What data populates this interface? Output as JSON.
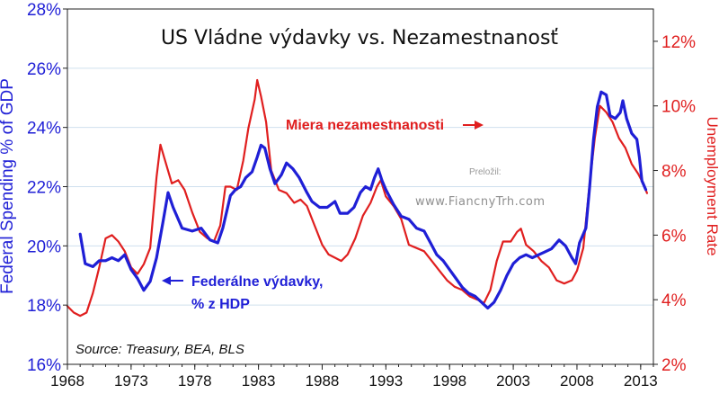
{
  "chart_data": {
    "type": "line",
    "title": "US Vládne výdavky vs. Nezamestnanosť",
    "ylabel_left": "Federal Spending % of GDP",
    "ylabel_right": "Unemployment Rate",
    "xlim": [
      1968,
      2014
    ],
    "ylim_left": [
      16,
      28
    ],
    "ylim_right": [
      2,
      13
    ],
    "grid": true,
    "x_ticks": [
      "1968",
      "1973",
      "1978",
      "1983",
      "1988",
      "1993",
      "1998",
      "2003",
      "2008",
      "2013"
    ],
    "y_ticks_left": [
      "16%",
      "18%",
      "20%",
      "22%",
      "24%",
      "26%",
      "28%"
    ],
    "y_ticks_right": [
      "2%",
      "4%",
      "6%",
      "8%",
      "10%",
      "12%"
    ],
    "series": [
      {
        "name": "Federálne výdavky, % z HDP",
        "axis": "left",
        "color": "#1f1fd6",
        "points": [
          [
            1969.0,
            20.4
          ],
          [
            1969.4,
            19.4
          ],
          [
            1970.0,
            19.3
          ],
          [
            1970.5,
            19.5
          ],
          [
            1971.0,
            19.5
          ],
          [
            1971.5,
            19.6
          ],
          [
            1972.0,
            19.5
          ],
          [
            1972.5,
            19.7
          ],
          [
            1973.0,
            19.2
          ],
          [
            1973.5,
            18.9
          ],
          [
            1974.0,
            18.5
          ],
          [
            1974.5,
            18.8
          ],
          [
            1975.0,
            19.6
          ],
          [
            1975.5,
            20.8
          ],
          [
            1975.9,
            21.8
          ],
          [
            1976.3,
            21.3
          ],
          [
            1977.0,
            20.6
          ],
          [
            1977.8,
            20.5
          ],
          [
            1978.5,
            20.6
          ],
          [
            1979.2,
            20.2
          ],
          [
            1979.8,
            20.1
          ],
          [
            1980.2,
            20.6
          ],
          [
            1980.8,
            21.7
          ],
          [
            1981.2,
            21.9
          ],
          [
            1981.6,
            22.0
          ],
          [
            1982.0,
            22.3
          ],
          [
            1982.5,
            22.5
          ],
          [
            1982.9,
            23.0
          ],
          [
            1983.2,
            23.4
          ],
          [
            1983.5,
            23.3
          ],
          [
            1983.9,
            22.6
          ],
          [
            1984.3,
            22.1
          ],
          [
            1984.8,
            22.4
          ],
          [
            1985.2,
            22.8
          ],
          [
            1985.7,
            22.6
          ],
          [
            1986.2,
            22.3
          ],
          [
            1986.8,
            21.8
          ],
          [
            1987.2,
            21.5
          ],
          [
            1987.8,
            21.3
          ],
          [
            1988.4,
            21.3
          ],
          [
            1989.0,
            21.5
          ],
          [
            1989.4,
            21.1
          ],
          [
            1990.0,
            21.1
          ],
          [
            1990.5,
            21.3
          ],
          [
            1991.0,
            21.8
          ],
          [
            1991.4,
            22.0
          ],
          [
            1991.8,
            21.9
          ],
          [
            1992.1,
            22.3
          ],
          [
            1992.4,
            22.6
          ],
          [
            1992.7,
            22.2
          ],
          [
            1993.0,
            21.9
          ],
          [
            1993.6,
            21.4
          ],
          [
            1994.2,
            21.0
          ],
          [
            1994.8,
            20.9
          ],
          [
            1995.4,
            20.6
          ],
          [
            1996.0,
            20.5
          ],
          [
            1996.5,
            20.1
          ],
          [
            1997.0,
            19.7
          ],
          [
            1997.5,
            19.5
          ],
          [
            1998.0,
            19.2
          ],
          [
            1998.5,
            18.9
          ],
          [
            1999.0,
            18.6
          ],
          [
            1999.5,
            18.4
          ],
          [
            2000.0,
            18.3
          ],
          [
            2000.5,
            18.1
          ],
          [
            2001.0,
            17.9
          ],
          [
            2001.5,
            18.1
          ],
          [
            2002.0,
            18.5
          ],
          [
            2002.5,
            19.0
          ],
          [
            2003.0,
            19.4
          ],
          [
            2003.5,
            19.6
          ],
          [
            2004.0,
            19.7
          ],
          [
            2004.5,
            19.6
          ],
          [
            2005.0,
            19.7
          ],
          [
            2005.5,
            19.8
          ],
          [
            2006.0,
            19.9
          ],
          [
            2006.6,
            20.2
          ],
          [
            2007.1,
            20.0
          ],
          [
            2007.6,
            19.6
          ],
          [
            2007.9,
            19.4
          ],
          [
            2008.2,
            20.1
          ],
          [
            2008.7,
            20.6
          ],
          [
            2009.0,
            22.0
          ],
          [
            2009.3,
            23.6
          ],
          [
            2009.6,
            24.7
          ],
          [
            2009.9,
            25.2
          ],
          [
            2010.3,
            25.1
          ],
          [
            2010.6,
            24.4
          ],
          [
            2011.0,
            24.3
          ],
          [
            2011.4,
            24.5
          ],
          [
            2011.6,
            24.9
          ],
          [
            2011.9,
            24.3
          ],
          [
            2012.3,
            23.8
          ],
          [
            2012.7,
            23.6
          ],
          [
            2012.9,
            23.0
          ],
          [
            2013.1,
            22.2
          ],
          [
            2013.4,
            21.9
          ]
        ]
      },
      {
        "name": "Miera nezamestnanosti",
        "axis": "right",
        "color": "#e01f1f",
        "points": [
          [
            1968.0,
            3.8
          ],
          [
            1968.5,
            3.6
          ],
          [
            1969.0,
            3.5
          ],
          [
            1969.5,
            3.6
          ],
          [
            1970.0,
            4.2
          ],
          [
            1970.5,
            5.0
          ],
          [
            1971.0,
            5.9
          ],
          [
            1971.5,
            6.0
          ],
          [
            1972.0,
            5.8
          ],
          [
            1972.5,
            5.5
          ],
          [
            1973.0,
            5.0
          ],
          [
            1973.5,
            4.8
          ],
          [
            1974.0,
            5.1
          ],
          [
            1974.5,
            5.6
          ],
          [
            1975.0,
            7.8
          ],
          [
            1975.3,
            8.8
          ],
          [
            1975.6,
            8.4
          ],
          [
            1976.2,
            7.6
          ],
          [
            1976.7,
            7.7
          ],
          [
            1977.2,
            7.4
          ],
          [
            1977.8,
            6.7
          ],
          [
            1978.4,
            6.1
          ],
          [
            1979.0,
            5.9
          ],
          [
            1979.5,
            5.8
          ],
          [
            1980.0,
            6.3
          ],
          [
            1980.4,
            7.5
          ],
          [
            1980.8,
            7.5
          ],
          [
            1981.3,
            7.4
          ],
          [
            1981.8,
            8.3
          ],
          [
            1982.2,
            9.3
          ],
          [
            1982.7,
            10.2
          ],
          [
            1982.9,
            10.8
          ],
          [
            1983.2,
            10.3
          ],
          [
            1983.6,
            9.5
          ],
          [
            1984.0,
            8.0
          ],
          [
            1984.6,
            7.4
          ],
          [
            1985.2,
            7.3
          ],
          [
            1985.8,
            7.0
          ],
          [
            1986.3,
            7.1
          ],
          [
            1986.8,
            6.9
          ],
          [
            1987.4,
            6.3
          ],
          [
            1988.0,
            5.7
          ],
          [
            1988.5,
            5.4
          ],
          [
            1989.0,
            5.3
          ],
          [
            1989.5,
            5.2
          ],
          [
            1990.0,
            5.4
          ],
          [
            1990.6,
            5.9
          ],
          [
            1991.2,
            6.6
          ],
          [
            1991.8,
            7.0
          ],
          [
            1992.3,
            7.5
          ],
          [
            1992.6,
            7.7
          ],
          [
            1993.0,
            7.2
          ],
          [
            1993.6,
            6.9
          ],
          [
            1994.2,
            6.5
          ],
          [
            1994.8,
            5.7
          ],
          [
            1995.4,
            5.6
          ],
          [
            1996.0,
            5.5
          ],
          [
            1996.6,
            5.2
          ],
          [
            1997.2,
            4.9
          ],
          [
            1997.8,
            4.6
          ],
          [
            1998.4,
            4.4
          ],
          [
            1999.0,
            4.3
          ],
          [
            1999.6,
            4.1
          ],
          [
            2000.2,
            4.0
          ],
          [
            2000.7,
            3.9
          ],
          [
            2001.2,
            4.3
          ],
          [
            2001.7,
            5.2
          ],
          [
            2002.2,
            5.8
          ],
          [
            2002.8,
            5.8
          ],
          [
            2003.3,
            6.1
          ],
          [
            2003.6,
            6.2
          ],
          [
            2004.0,
            5.7
          ],
          [
            2004.6,
            5.5
          ],
          [
            2005.2,
            5.2
          ],
          [
            2005.8,
            5.0
          ],
          [
            2006.4,
            4.6
          ],
          [
            2007.0,
            4.5
          ],
          [
            2007.6,
            4.6
          ],
          [
            2008.0,
            4.9
          ],
          [
            2008.5,
            5.6
          ],
          [
            2009.0,
            7.6
          ],
          [
            2009.4,
            9.0
          ],
          [
            2009.8,
            10.0
          ],
          [
            2010.3,
            9.8
          ],
          [
            2010.8,
            9.5
          ],
          [
            2011.3,
            9.0
          ],
          [
            2011.8,
            8.7
          ],
          [
            2012.3,
            8.2
          ],
          [
            2012.8,
            7.9
          ],
          [
            2013.2,
            7.6
          ],
          [
            2013.5,
            7.3
          ]
        ]
      }
    ],
    "annotations": {
      "unemployment_label": "Miera nezamestnanosti",
      "spending_label_line1": "Federálne výdavky,",
      "spending_label_line2": "% z HDP",
      "source": "Source: Treasury, BEA, BLS",
      "credit": "Preložil:",
      "website": "www.FiancnyTrh.com"
    }
  }
}
